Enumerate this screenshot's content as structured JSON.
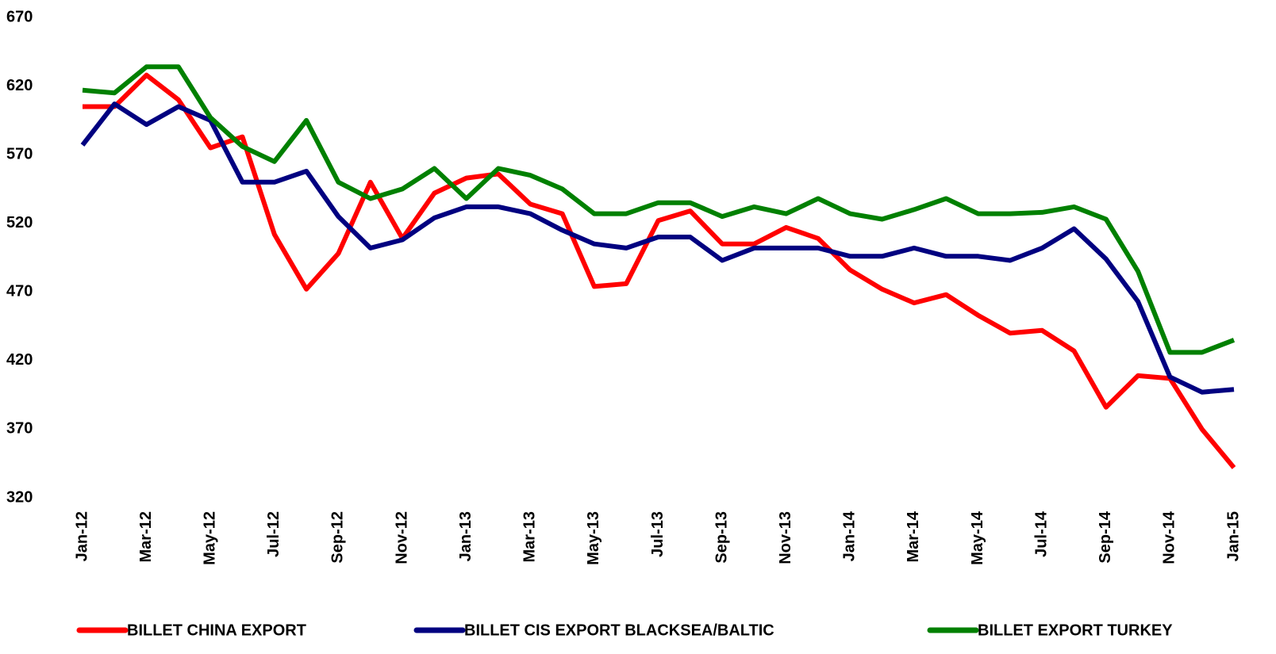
{
  "chart_data": {
    "type": "line",
    "categories": [
      "Jan-12",
      null,
      "Mar-12",
      null,
      "May-12",
      null,
      "Jul-12",
      null,
      "Sep-12",
      null,
      "Nov-12",
      null,
      "Jan-13",
      null,
      "Mar-13",
      null,
      "May-13",
      null,
      "Jul-13",
      null,
      "Sep-13",
      null,
      "Nov-13",
      null,
      "Jan-14",
      null,
      "Mar-14",
      null,
      "May-14",
      null,
      "Jul-14",
      null,
      "Sep-14",
      null,
      "Nov-14",
      null,
      "Jan-15"
    ],
    "series": [
      {
        "name": "BILLET CHINA EXPORT",
        "color": "#ff0000",
        "values": [
          605,
          605,
          628,
          610,
          575,
          583,
          512,
          472,
          498,
          550,
          509,
          542,
          553,
          556,
          534,
          527,
          474,
          476,
          522,
          529,
          505,
          505,
          517,
          509,
          486,
          472,
          462,
          468,
          453,
          440,
          442,
          427,
          386,
          409,
          407,
          370,
          342
        ]
      },
      {
        "name": "BILLET CIS EXPORT BLACKSEA/BALTIC",
        "color": "#000080",
        "values": [
          577,
          607,
          592,
          605,
          595,
          550,
          550,
          558,
          525,
          502,
          508,
          524,
          532,
          532,
          527,
          515,
          505,
          502,
          510,
          510,
          493,
          502,
          502,
          502,
          496,
          496,
          502,
          496,
          496,
          493,
          502,
          516,
          494,
          463,
          408,
          397,
          399
        ]
      },
      {
        "name": "BILLET EXPORT TURKEY",
        "color": "#008000",
        "values": [
          617,
          615,
          634,
          634,
          597,
          576,
          565,
          595,
          550,
          538,
          545,
          560,
          538,
          560,
          555,
          545,
          527,
          527,
          535,
          535,
          525,
          532,
          527,
          538,
          527,
          523,
          530,
          538,
          527,
          527,
          528,
          532,
          523,
          485,
          426,
          426,
          435
        ]
      }
    ],
    "ylim": [
      320,
      670
    ],
    "yticks": [
      320,
      370,
      420,
      470,
      520,
      570,
      620,
      670
    ],
    "grid": false,
    "legend": "bottom"
  }
}
